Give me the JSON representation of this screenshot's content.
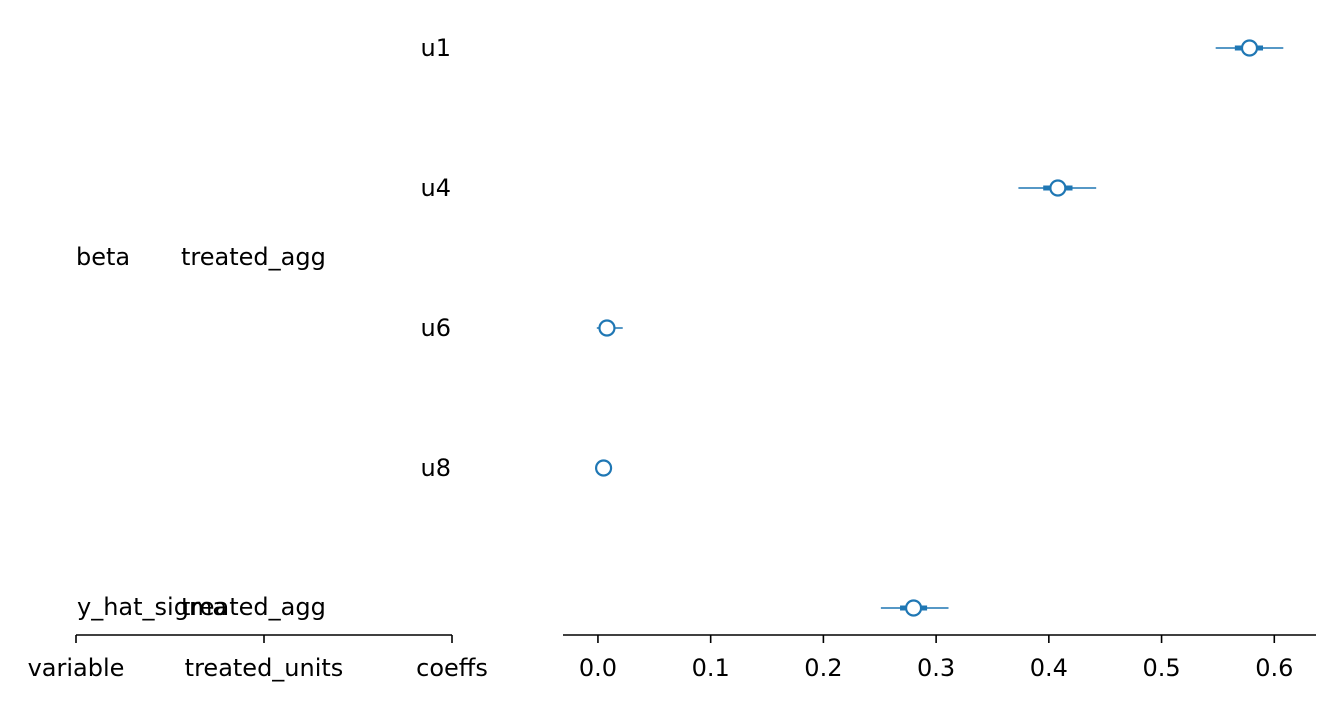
{
  "chart_data": {
    "type": "forest",
    "color": "#1f77b4",
    "left_columns": [
      "variable",
      "treated_units",
      "coeffs"
    ],
    "variable_labels": [
      {
        "text": "beta"
      },
      {
        "text": "y_hat_sigma"
      }
    ],
    "treated_unit_labels": [
      {
        "text": "treated_agg"
      },
      {
        "text": "treated_agg"
      }
    ],
    "rows": [
      {
        "label": "u1",
        "mean": 0.578,
        "hdi_50": [
          0.565,
          0.59
        ],
        "hdi_94": [
          0.548,
          0.608
        ]
      },
      {
        "label": "u4",
        "mean": 0.408,
        "hdi_50": [
          0.395,
          0.421
        ],
        "hdi_94": [
          0.373,
          0.442
        ]
      },
      {
        "label": "u6",
        "mean": 0.008,
        "hdi_50": [
          0.002,
          0.011
        ],
        "hdi_94": [
          -0.001,
          0.022
        ]
      },
      {
        "label": "u8",
        "mean": 0.005,
        "hdi_50": [
          0.003,
          0.007
        ],
        "hdi_94": [
          0.001,
          0.01
        ]
      },
      {
        "label": "",
        "mean": 0.28,
        "hdi_50": [
          0.268,
          0.292
        ],
        "hdi_94": [
          0.251,
          0.311
        ]
      }
    ],
    "x_ticks": [
      "0.0",
      "0.1",
      "0.2",
      "0.3",
      "0.4",
      "0.5",
      "0.6"
    ],
    "xlim": [
      -0.031,
      0.637
    ]
  }
}
